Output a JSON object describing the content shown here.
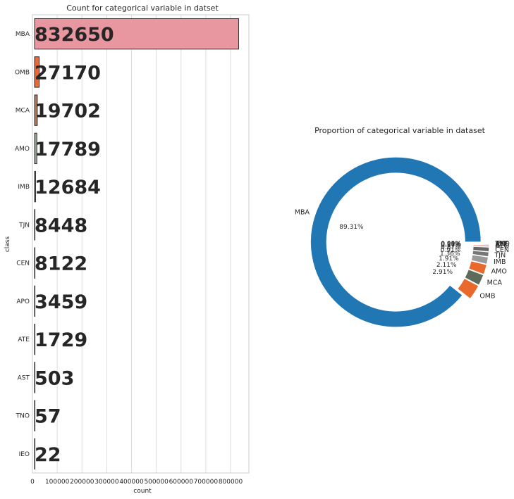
{
  "colors": {
    "bars": [
      "#e8969f",
      "#e8693a",
      "#b07a5e",
      "#9aa59a",
      "#6f826f",
      "#7b8a7b",
      "#8aa0a0",
      "#4d8ec4",
      "#777777",
      "#666666",
      "#555555",
      "#444444"
    ],
    "pie": [
      "#2176b4",
      "#e8692b",
      "#5e6b5a",
      "#e8692b",
      "#9a9a9a",
      "#777777",
      "#666666",
      "#e8969f",
      "#2176b4",
      "#999999",
      "#555555",
      "#444444"
    ]
  },
  "chart_data": [
    {
      "type": "bar",
      "orientation": "horizontal",
      "title": "Count for categorical variable in datset",
      "xlabel": "count",
      "ylabel": "class",
      "categories": [
        "MBA",
        "OMB",
        "MCA",
        "AMO",
        "IMB",
        "TJN",
        "CEN",
        "APO",
        "ATE",
        "AST",
        "TNO",
        "IEO"
      ],
      "values": [
        832650,
        27170,
        19702,
        17789,
        12684,
        8448,
        8122,
        3459,
        1729,
        503,
        57,
        22
      ],
      "value_labels": [
        "832650",
        "27170",
        "19702",
        "17789",
        "12684",
        "8448",
        "8122",
        "3459",
        "1729",
        "503",
        "57",
        "22"
      ],
      "xticks": [
        "0",
        "100000",
        "200000",
        "300000",
        "400000",
        "500000",
        "600000",
        "700000",
        "800000"
      ],
      "xtick_values": [
        0,
        100000,
        200000,
        300000,
        400000,
        500000,
        600000,
        700000,
        800000
      ],
      "xlim": [
        0,
        874000
      ],
      "grid": true
    },
    {
      "type": "pie",
      "style": "donut",
      "title": "Proportion of categorical variable in dataset",
      "labels": [
        "MBA",
        "OMB",
        "MCA",
        "AMO",
        "IMB",
        "TJN",
        "CEN",
        "APO",
        "ATE",
        "AST",
        "TNO",
        "IEO"
      ],
      "values": [
        832650,
        27170,
        19702,
        17789,
        12684,
        8448,
        8122,
        3459,
        1729,
        503,
        57,
        22
      ],
      "pct_labels": [
        "89.31%",
        "2.91%",
        "2.11%",
        "1.91%",
        "1.36%",
        "0.91%",
        "0.87%",
        "0.37%",
        "0.19%",
        "0.05%",
        "0.01%",
        "0.00%"
      ],
      "explode": 0.05,
      "start_angle": 0
    }
  ]
}
